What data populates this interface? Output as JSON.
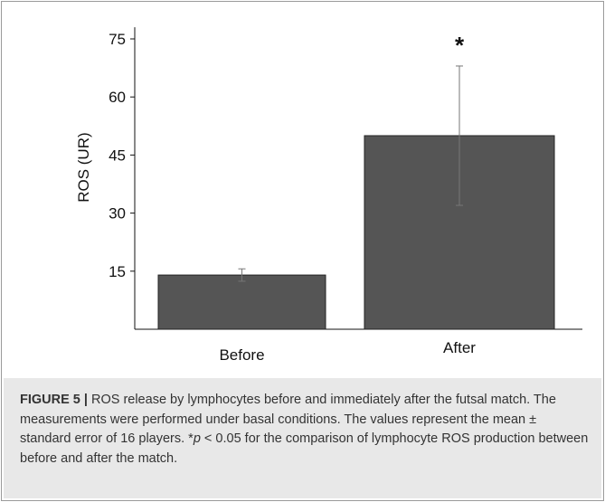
{
  "chart_data": {
    "type": "bar",
    "categories": [
      "Before",
      "After"
    ],
    "values": [
      14,
      50
    ],
    "errors": [
      1.6,
      18
    ],
    "ylabel": "ROS (UR)",
    "yticks": [
      15,
      30,
      45,
      60,
      75
    ],
    "ylim": [
      0,
      78
    ],
    "annotations": [
      {
        "category": "After",
        "text": "*"
      }
    ],
    "bar_color": "#555555",
    "grid": false
  },
  "caption": {
    "figure_label": "FIGURE 5 |",
    "part1": " ROS release by lymphocytes before and immediately after the futsal match. The measurements were performed under basal conditions. The values represent the mean ± standard error of 16 players. *",
    "p_symbol": "p",
    "part2": " < 0.05 for the comparison of lymphocyte ROS production between before and after the match."
  }
}
